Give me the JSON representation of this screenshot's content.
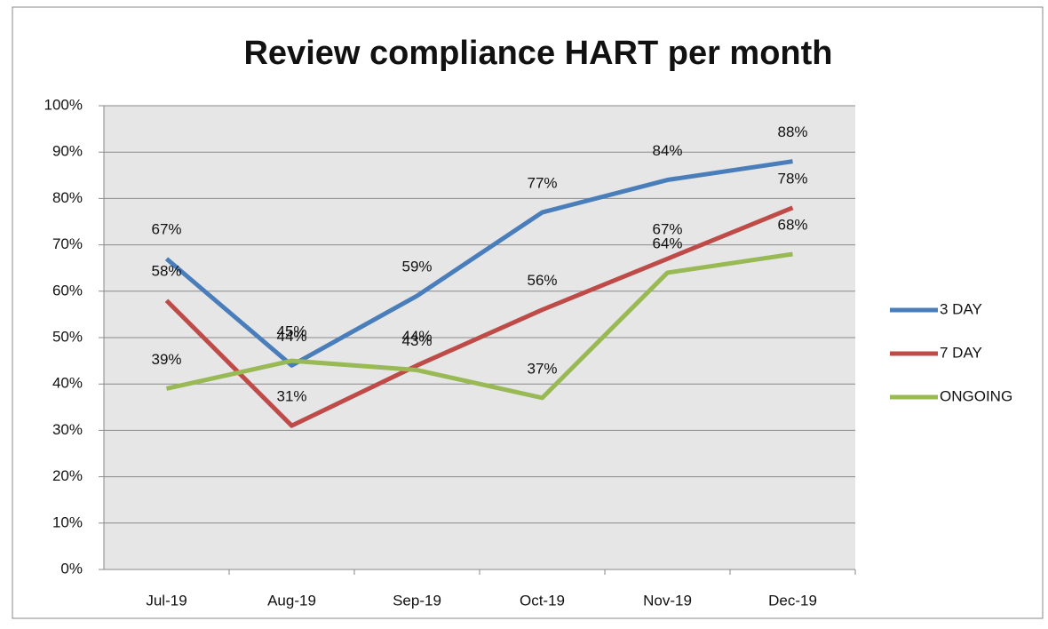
{
  "chart_data": {
    "type": "line",
    "title": "Review compliance HART per month",
    "categories": [
      "Jul-19",
      "Aug-19",
      "Sep-19",
      "Oct-19",
      "Nov-19",
      "Dec-19"
    ],
    "series": [
      {
        "name": "3 DAY",
        "color": "#4a7ebb",
        "values": [
          67,
          44,
          59,
          77,
          84,
          88
        ],
        "value_labels": [
          "67%",
          "44%",
          "59%",
          "77%",
          "84%",
          "88%"
        ]
      },
      {
        "name": "7 DAY",
        "color": "#be4b48",
        "values": [
          58,
          31,
          44,
          56,
          67,
          78
        ],
        "value_labels": [
          "58%",
          "31%",
          "44%",
          "56%",
          "67%",
          "78%"
        ]
      },
      {
        "name": "ONGOING",
        "color": "#98b954",
        "values": [
          39,
          45,
          43,
          37,
          64,
          68
        ],
        "value_labels": [
          "39%",
          "45%",
          "43%",
          "37%",
          "64%",
          "68%"
        ]
      }
    ],
    "ylim": [
      0,
      100
    ],
    "yticks": [
      {
        "value": 0,
        "label": "0%"
      },
      {
        "value": 10,
        "label": "10%"
      },
      {
        "value": 20,
        "label": "20%"
      },
      {
        "value": 30,
        "label": "30%"
      },
      {
        "value": 40,
        "label": "40%"
      },
      {
        "value": 50,
        "label": "50%"
      },
      {
        "value": 60,
        "label": "60%"
      },
      {
        "value": 70,
        "label": "70%"
      },
      {
        "value": 80,
        "label": "80%"
      },
      {
        "value": 90,
        "label": "90%"
      },
      {
        "value": 100,
        "label": "100%"
      }
    ],
    "grid": true,
    "legend": "right"
  }
}
